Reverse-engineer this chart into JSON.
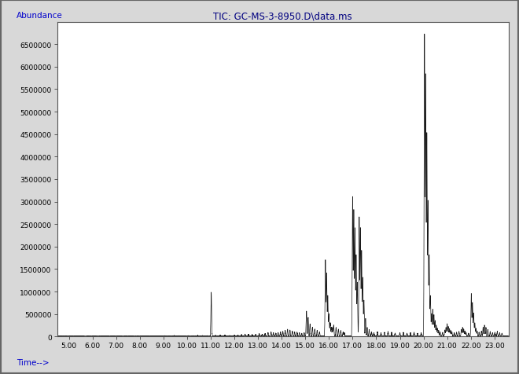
{
  "title": "TIC: GC-MS-3-8950.D\\data.ms",
  "xlabel": "Time-->",
  "ylabel": "Abundance",
  "xlim": [
    4.5,
    23.6
  ],
  "ylim": [
    0,
    7000000
  ],
  "xticks": [
    5.0,
    6.0,
    7.0,
    8.0,
    9.0,
    10.0,
    11.0,
    12.0,
    13.0,
    14.0,
    15.0,
    16.0,
    17.0,
    18.0,
    19.0,
    20.0,
    21.0,
    22.0,
    23.0
  ],
  "yticks": [
    0,
    500000,
    1000000,
    1500000,
    2000000,
    2500000,
    3000000,
    3500000,
    4000000,
    4500000,
    5000000,
    5500000,
    6000000,
    6500000
  ],
  "background_color": "#ffffff",
  "plot_bg_color": "#ffffff",
  "line_color": "#1a1a1a",
  "border_color": "#aaaaaa",
  "title_color": "#000080",
  "axis_label_color": "#0000cc",
  "tick_label_color": "#000000",
  "outer_bg": "#d8d8d8",
  "peaks": [
    [
      4.85,
      12000
    ],
    [
      5.05,
      10000
    ],
    [
      5.3,
      8000
    ],
    [
      5.55,
      9000
    ],
    [
      5.8,
      7000
    ],
    [
      6.1,
      9000
    ],
    [
      6.4,
      7000
    ],
    [
      6.65,
      8000
    ],
    [
      6.9,
      6000
    ],
    [
      7.15,
      9000
    ],
    [
      7.4,
      7000
    ],
    [
      7.65,
      8000
    ],
    [
      7.9,
      6000
    ],
    [
      8.1,
      10000
    ],
    [
      8.35,
      8000
    ],
    [
      8.6,
      12000
    ],
    [
      8.85,
      9000
    ],
    [
      9.05,
      15000
    ],
    [
      9.25,
      12000
    ],
    [
      9.45,
      18000
    ],
    [
      9.65,
      14000
    ],
    [
      9.85,
      12000
    ],
    [
      10.05,
      16000
    ],
    [
      10.25,
      14000
    ],
    [
      10.45,
      20000
    ],
    [
      10.65,
      18000
    ],
    [
      10.85,
      15000
    ],
    [
      11.05,
      25000
    ],
    [
      11.2,
      20000
    ],
    [
      11.4,
      22000
    ],
    [
      11.6,
      25000
    ],
    [
      11.8,
      18000
    ],
    [
      12.0,
      22000
    ],
    [
      12.15,
      30000
    ],
    [
      12.3,
      40000
    ],
    [
      12.45,
      50000
    ],
    [
      12.6,
      45000
    ],
    [
      12.75,
      38000
    ],
    [
      12.9,
      42000
    ],
    [
      13.05,
      55000
    ],
    [
      13.18,
      48000
    ],
    [
      13.3,
      65000
    ],
    [
      13.42,
      85000
    ],
    [
      13.55,
      95000
    ],
    [
      13.65,
      80000
    ],
    [
      13.75,
      70000
    ],
    [
      13.85,
      85000
    ],
    [
      13.95,
      100000
    ],
    [
      14.05,
      110000
    ],
    [
      14.15,
      130000
    ],
    [
      14.25,
      160000
    ],
    [
      14.35,
      140000
    ],
    [
      14.45,
      120000
    ],
    [
      14.55,
      100000
    ],
    [
      14.65,
      90000
    ],
    [
      14.75,
      80000
    ],
    [
      14.85,
      70000
    ],
    [
      14.95,
      80000
    ],
    [
      11.02,
      980000
    ],
    [
      15.05,
      560000
    ],
    [
      15.12,
      420000
    ],
    [
      15.2,
      280000
    ],
    [
      15.3,
      200000
    ],
    [
      15.4,
      160000
    ],
    [
      15.5,
      130000
    ],
    [
      15.6,
      100000
    ],
    [
      15.85,
      1700000
    ],
    [
      15.9,
      1400000
    ],
    [
      15.95,
      900000
    ],
    [
      16.0,
      500000
    ],
    [
      16.05,
      300000
    ],
    [
      16.1,
      200000
    ],
    [
      16.15,
      200000
    ],
    [
      16.2,
      250000
    ],
    [
      16.3,
      200000
    ],
    [
      16.4,
      160000
    ],
    [
      16.5,
      130000
    ],
    [
      16.6,
      100000
    ],
    [
      16.65,
      80000
    ],
    [
      17.0,
      3100000
    ],
    [
      17.05,
      2800000
    ],
    [
      17.1,
      2400000
    ],
    [
      17.15,
      1800000
    ],
    [
      17.2,
      1200000
    ],
    [
      17.28,
      2650000
    ],
    [
      17.33,
      2400000
    ],
    [
      17.38,
      1900000
    ],
    [
      17.43,
      1300000
    ],
    [
      17.48,
      800000
    ],
    [
      17.55,
      400000
    ],
    [
      17.62,
      200000
    ],
    [
      17.7,
      150000
    ],
    [
      17.8,
      100000
    ],
    [
      17.9,
      80000
    ],
    [
      18.05,
      100000
    ],
    [
      18.2,
      80000
    ],
    [
      18.35,
      90000
    ],
    [
      18.5,
      110000
    ],
    [
      18.65,
      90000
    ],
    [
      18.8,
      70000
    ],
    [
      19.0,
      80000
    ],
    [
      19.15,
      90000
    ],
    [
      19.3,
      70000
    ],
    [
      19.45,
      80000
    ],
    [
      19.6,
      90000
    ],
    [
      19.75,
      70000
    ],
    [
      19.9,
      80000
    ],
    [
      20.04,
      6700000
    ],
    [
      20.09,
      5800000
    ],
    [
      20.14,
      4500000
    ],
    [
      20.19,
      3000000
    ],
    [
      20.24,
      1800000
    ],
    [
      20.29,
      900000
    ],
    [
      20.34,
      500000
    ],
    [
      20.39,
      600000
    ],
    [
      20.44,
      480000
    ],
    [
      20.49,
      350000
    ],
    [
      20.54,
      250000
    ],
    [
      20.59,
      180000
    ],
    [
      20.64,
      130000
    ],
    [
      20.7,
      100000
    ],
    [
      20.8,
      90000
    ],
    [
      20.9,
      140000
    ],
    [
      20.95,
      200000
    ],
    [
      21.0,
      280000
    ],
    [
      21.05,
      220000
    ],
    [
      21.1,
      170000
    ],
    [
      21.15,
      130000
    ],
    [
      21.2,
      100000
    ],
    [
      21.3,
      80000
    ],
    [
      21.4,
      90000
    ],
    [
      21.5,
      110000
    ],
    [
      21.6,
      150000
    ],
    [
      21.65,
      200000
    ],
    [
      21.7,
      160000
    ],
    [
      21.75,
      120000
    ],
    [
      21.8,
      90000
    ],
    [
      21.9,
      70000
    ],
    [
      22.02,
      950000
    ],
    [
      22.07,
      750000
    ],
    [
      22.12,
      520000
    ],
    [
      22.17,
      300000
    ],
    [
      22.22,
      180000
    ],
    [
      22.27,
      120000
    ],
    [
      22.35,
      90000
    ],
    [
      22.45,
      120000
    ],
    [
      22.52,
      200000
    ],
    [
      22.58,
      250000
    ],
    [
      22.64,
      200000
    ],
    [
      22.72,
      150000
    ],
    [
      22.82,
      110000
    ],
    [
      22.92,
      80000
    ],
    [
      23.02,
      90000
    ],
    [
      23.12,
      110000
    ],
    [
      23.22,
      80000
    ],
    [
      23.32,
      70000
    ]
  ]
}
